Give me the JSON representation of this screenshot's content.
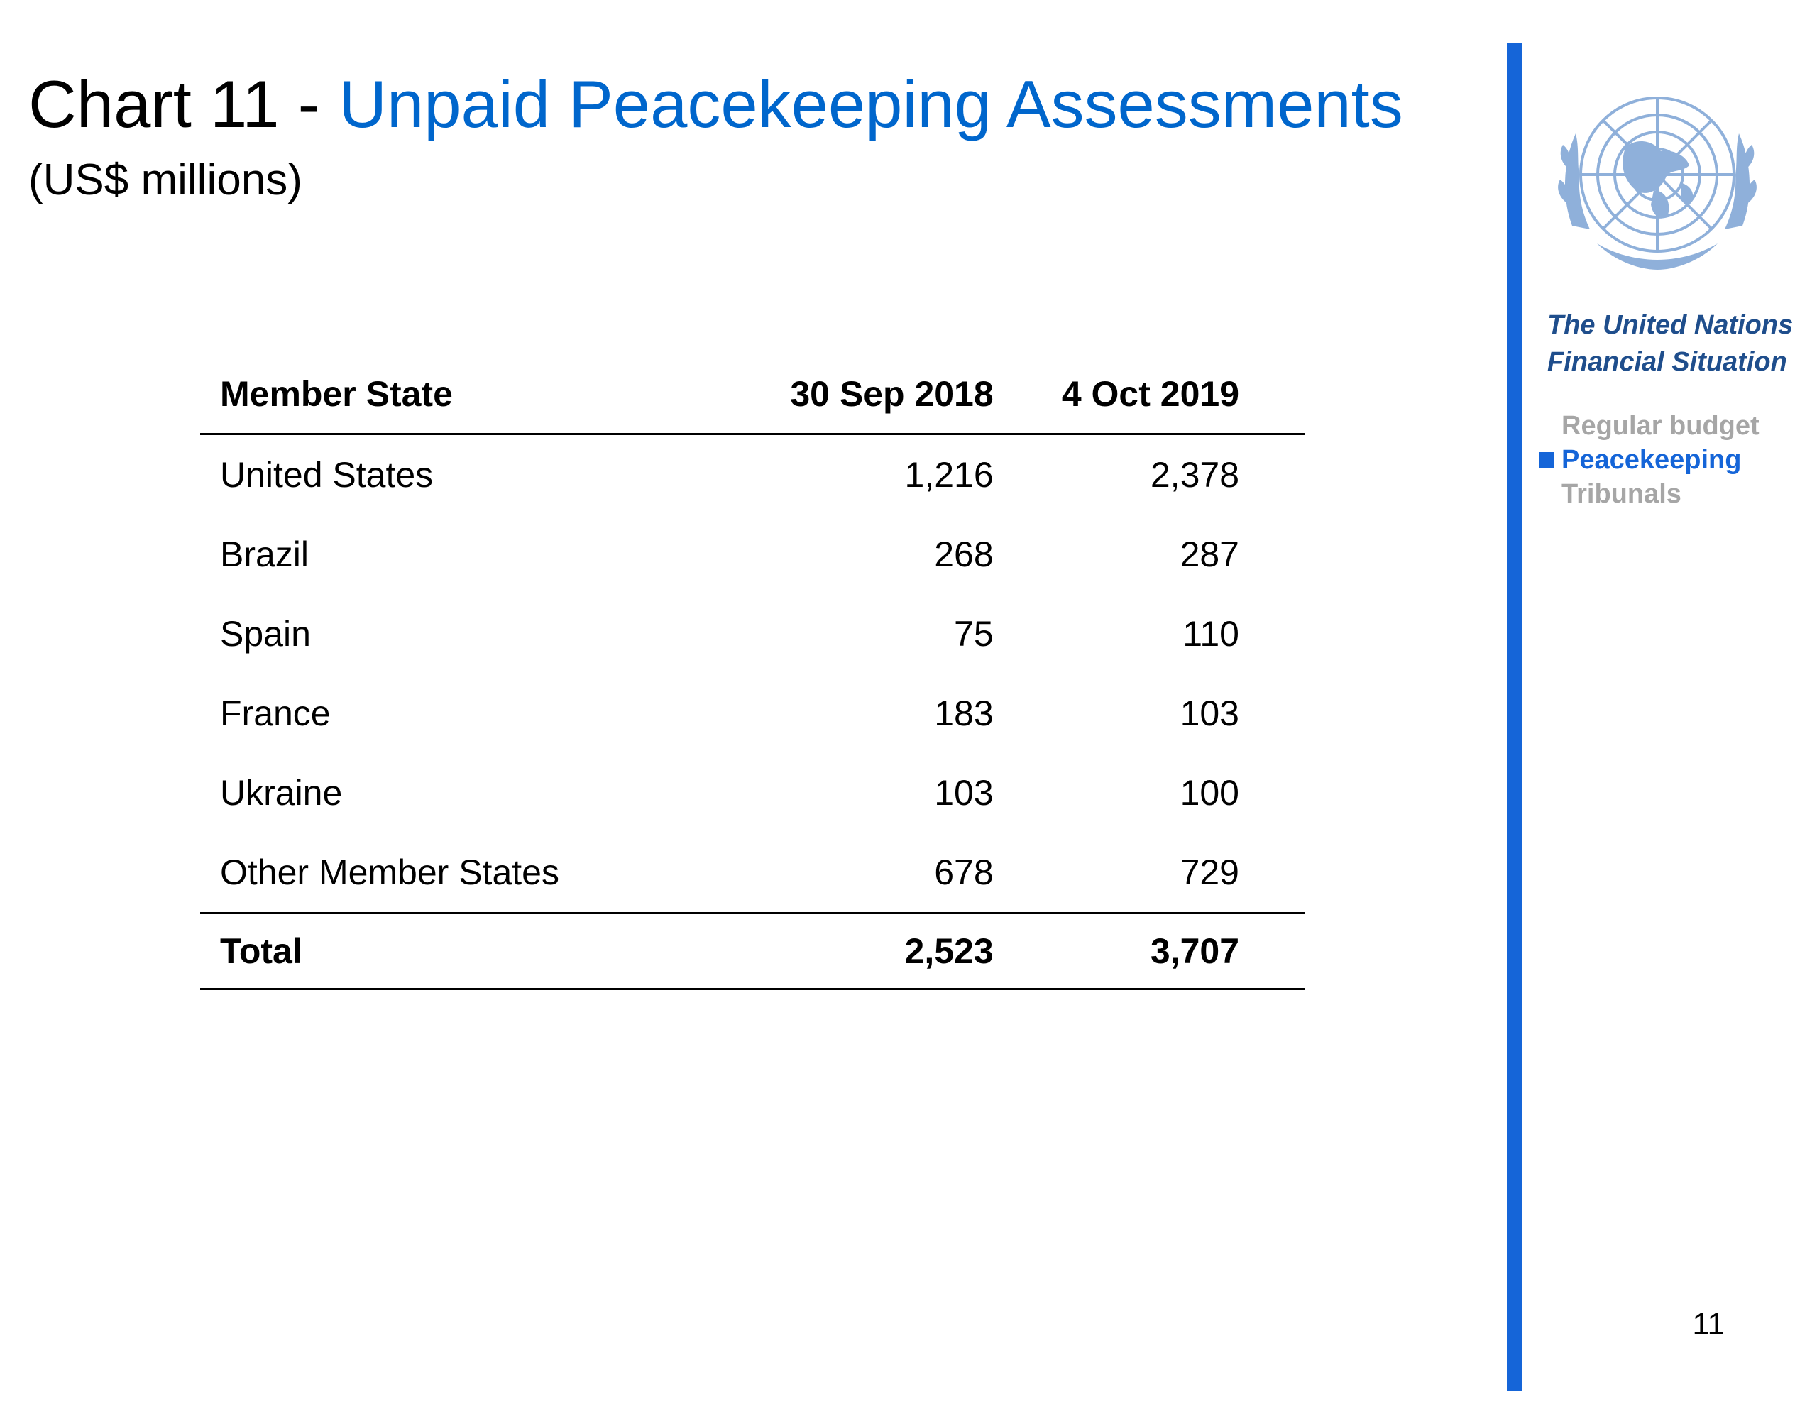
{
  "title": {
    "prefix": "Chart 11 - ",
    "main": "Unpaid Peacekeeping Assessments"
  },
  "subtitle": "(US$ millions)",
  "table": {
    "headers": [
      "Member State",
      "30 Sep 2018",
      "4 Oct 2019"
    ],
    "rows": [
      [
        "United States",
        "1,216",
        "2,378"
      ],
      [
        "Brazil",
        "268",
        "287"
      ],
      [
        "Spain",
        "75",
        "110"
      ],
      [
        "France",
        "183",
        "103"
      ],
      [
        "Ukraine",
        "103",
        "100"
      ],
      [
        "Other Member States",
        "678",
        "729"
      ]
    ],
    "total": [
      "Total",
      "2,523",
      "3,707"
    ]
  },
  "sidebar": {
    "heading_line1": "The United Nations",
    "heading_line2": "Financial Situation",
    "nav": [
      {
        "label": "Regular budget",
        "active": false
      },
      {
        "label": "Peacekeeping",
        "active": true
      },
      {
        "label": "Tribunals",
        "active": false
      }
    ],
    "accent_color": "#1565d8",
    "inactive_color": "#a6a6a6"
  },
  "page_number": "11",
  "colors": {
    "title_accent": "#0066cc",
    "emblem": "#8fb0da"
  }
}
